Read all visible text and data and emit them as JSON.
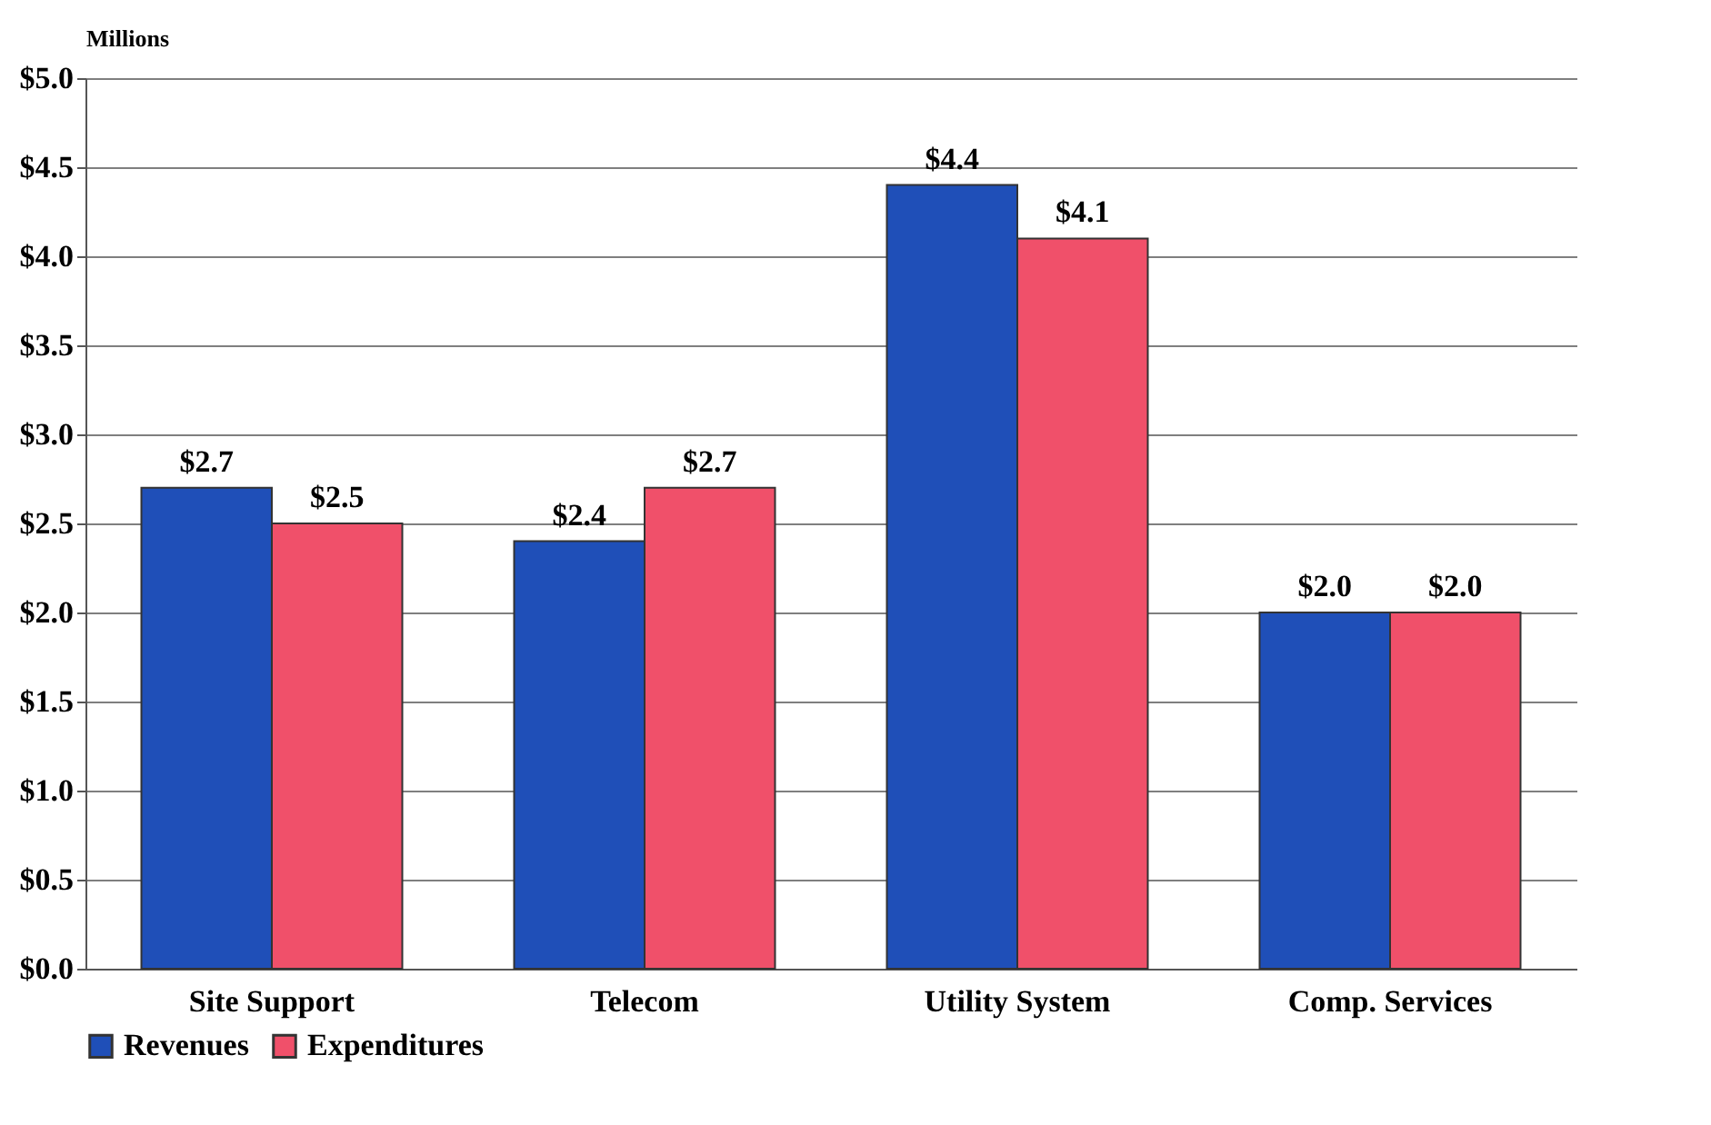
{
  "chart_data": {
    "type": "bar",
    "ylabel": "Millions",
    "categories": [
      "Site Support",
      "Telecom",
      "Utility System",
      "Comp. Services"
    ],
    "series": [
      {
        "name": "Revenues",
        "color": "#1f4fb8",
        "values": [
          2.7,
          2.4,
          4.4,
          2.0
        ],
        "value_labels": [
          "$2.7",
          "$2.4",
          "$4.4",
          "$2.0"
        ]
      },
      {
        "name": "Expenditures",
        "color": "#f0506a",
        "values": [
          2.5,
          2.7,
          4.1,
          2.0
        ],
        "value_labels": [
          "$2.5",
          "$2.7",
          "$4.1",
          "$2.0"
        ]
      }
    ],
    "ylim": [
      0,
      5
    ],
    "yticks": [
      {
        "value": 0,
        "label": "$0.0"
      },
      {
        "value": 0.5,
        "label": "$0.5"
      },
      {
        "value": 1,
        "label": "$1.0"
      },
      {
        "value": 1.5,
        "label": "$1.5"
      },
      {
        "value": 2,
        "label": "$2.0"
      },
      {
        "value": 2.5,
        "label": "$2.5"
      },
      {
        "value": 3,
        "label": "$3.0"
      },
      {
        "value": 3.5,
        "label": "$3.5"
      },
      {
        "value": 4,
        "label": "$4.0"
      },
      {
        "value": 4.5,
        "label": "$4.5"
      },
      {
        "value": 5,
        "label": "$5.0"
      }
    ],
    "grid": "y",
    "legend": "bottom"
  }
}
